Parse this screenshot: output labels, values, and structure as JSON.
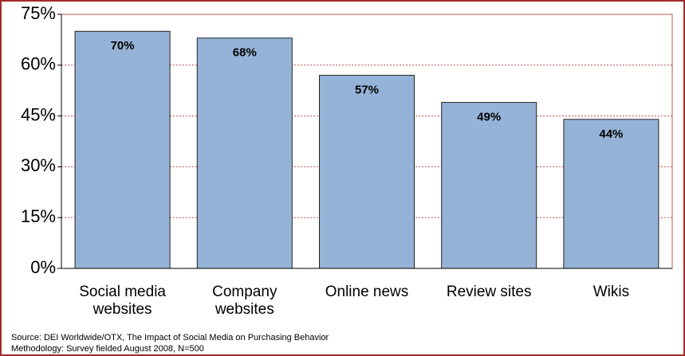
{
  "chart_data": {
    "type": "bar",
    "categories": [
      "Social media websites",
      "Company websites",
      "Online news",
      "Review sites",
      "Wikis"
    ],
    "values": [
      70,
      68,
      57,
      49,
      44
    ],
    "value_labels": [
      "70%",
      "68%",
      "57%",
      "49%",
      "44%"
    ],
    "color": "#95b3d7",
    "ylim": [
      0,
      75
    ],
    "yticks": [
      {
        "value": 0,
        "label": "0%"
      },
      {
        "value": 15,
        "label": "15%"
      },
      {
        "value": 30,
        "label": "30%"
      },
      {
        "value": 45,
        "label": "45%"
      },
      {
        "value": 60,
        "label": "60%"
      },
      {
        "value": 75,
        "label": "75%"
      }
    ],
    "grid": true,
    "notes": [
      "Source: DEI Worldwide/OTX, The Impact of Social Media on Purchasing Behavior",
      "Methodology: Survey fielded August 2008, N=500"
    ]
  }
}
